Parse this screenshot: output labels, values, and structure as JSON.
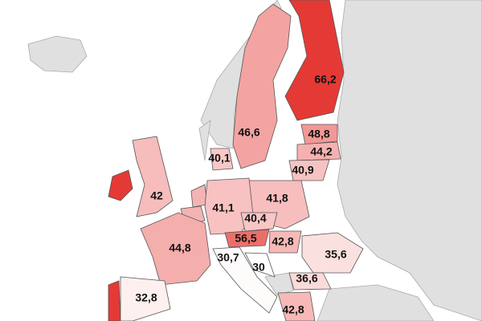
{
  "chart_data": {
    "type": "choropleth",
    "color": "#e53935",
    "values": [
      66.2,
      46.6,
      48.8,
      44.2,
      40.9,
      40.1,
      42,
      41.8,
      41.1,
      40.4,
      56.5,
      42.8,
      44.8,
      30.7,
      30,
      35.6,
      36.6,
      42.8,
      32.8
    ],
    "value_labels": [
      "66,2",
      "46,6",
      "48,8",
      "44,2",
      "40,9",
      "40,1",
      "42",
      "41,8",
      "41,1",
      "40,4",
      "56,5",
      "42,8",
      "44,8",
      "30,7",
      "30",
      "35,6",
      "36,6",
      "42,8",
      "32,8"
    ]
  }
}
